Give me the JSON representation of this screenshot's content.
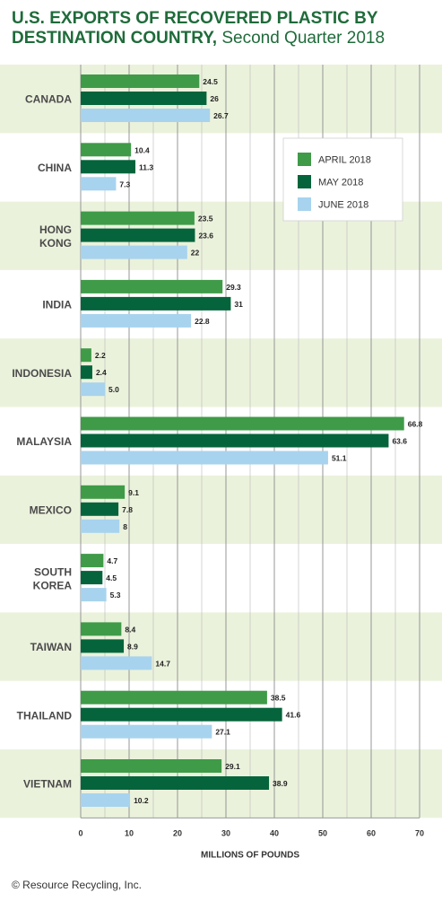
{
  "header": {
    "title_main": "U.S. EXPORTS OF RECOVERED PLASTIC BY DESTINATION COUNTRY,",
    "title_sub": " Second Quarter 2018"
  },
  "footer": {
    "source": "© Resource Recycling, Inc."
  },
  "colors": {
    "april": "#3f9b48",
    "may": "#05643b",
    "june": "#a7d3ee",
    "band": "#ebf2dc",
    "title": "#1f6b3a"
  },
  "chart_data": {
    "type": "bar",
    "orientation": "horizontal",
    "title": "U.S. EXPORTS OF RECOVERED PLASTIC BY DESTINATION COUNTRY, Second Quarter 2018",
    "xlabel": "MILLIONS OF POUNDS",
    "ylabel": "",
    "xlim": [
      0,
      70
    ],
    "xticks": [
      0,
      10,
      20,
      30,
      40,
      50,
      60,
      70
    ],
    "grid": true,
    "legend_position": "top-right",
    "categories": [
      [
        "CANADA"
      ],
      [
        "CHINA"
      ],
      [
        "HONG",
        "KONG"
      ],
      [
        "INDIA"
      ],
      [
        "INDONESIA"
      ],
      [
        "MALAYSIA"
      ],
      [
        "MEXICO"
      ],
      [
        "SOUTH",
        "KOREA"
      ],
      [
        "TAIWAN"
      ],
      [
        "THAILAND"
      ],
      [
        "VIETNAM"
      ]
    ],
    "series": [
      {
        "name": "APRIL 2018",
        "values": [
          24.5,
          10.4,
          23.5,
          29.3,
          2.2,
          66.8,
          9.1,
          4.7,
          8.4,
          38.5,
          29.1
        ],
        "labels": [
          "24.5",
          "10.4",
          "23.5",
          "29.3",
          "2.2",
          "66.8",
          "9.1",
          "4.7",
          "8.4",
          "38.5",
          "29.1"
        ]
      },
      {
        "name": "MAY 2018",
        "values": [
          26,
          11.3,
          23.6,
          31,
          2.4,
          63.6,
          7.8,
          4.5,
          8.9,
          41.6,
          38.9
        ],
        "labels": [
          "26",
          "11.3",
          "23.6",
          "31",
          "2.4",
          "63.6",
          "7.8",
          "4.5",
          "8.9",
          "41.6",
          "38.9"
        ]
      },
      {
        "name": "JUNE 2018",
        "values": [
          26.7,
          7.3,
          22,
          22.8,
          5.0,
          51.1,
          8,
          5.3,
          14.7,
          27.1,
          10.2
        ],
        "labels": [
          "26.7",
          "7.3",
          "22",
          "22.8",
          "5.0",
          "51.1",
          "8",
          "5.3",
          "14.7",
          "27.1",
          "10.2"
        ]
      }
    ]
  }
}
